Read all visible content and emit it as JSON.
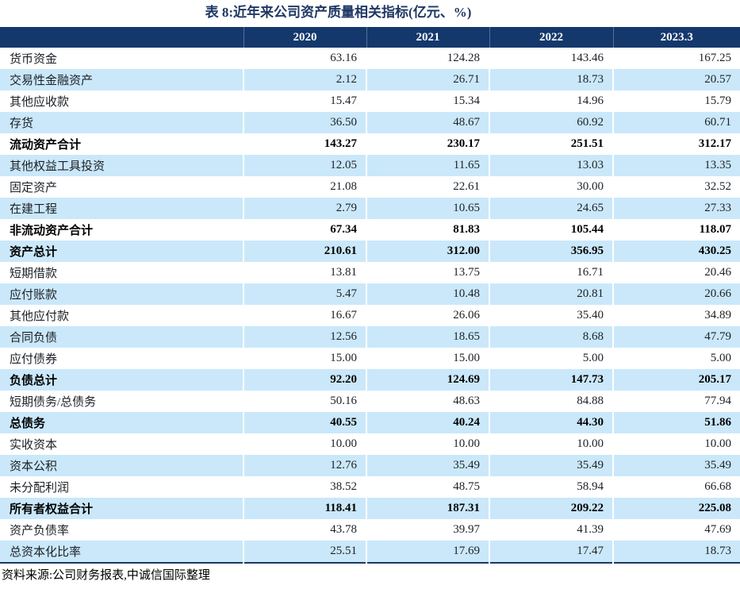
{
  "title": "表 8:近年来公司资产质量相关指标(亿元、%)",
  "table": {
    "columns": [
      "",
      "2020",
      "2021",
      "2022",
      "2023.3"
    ],
    "rows": [
      {
        "label": "货币资金",
        "values": [
          "63.16",
          "124.28",
          "143.46",
          "167.25"
        ],
        "bold": false
      },
      {
        "label": "交易性金融资产",
        "values": [
          "2.12",
          "26.71",
          "18.73",
          "20.57"
        ],
        "bold": false
      },
      {
        "label": "其他应收款",
        "values": [
          "15.47",
          "15.34",
          "14.96",
          "15.79"
        ],
        "bold": false
      },
      {
        "label": "存货",
        "values": [
          "36.50",
          "48.67",
          "60.92",
          "60.71"
        ],
        "bold": false
      },
      {
        "label": "流动资产合计",
        "values": [
          "143.27",
          "230.17",
          "251.51",
          "312.17"
        ],
        "bold": true
      },
      {
        "label": "其他权益工具投资",
        "values": [
          "12.05",
          "11.65",
          "13.03",
          "13.35"
        ],
        "bold": false
      },
      {
        "label": "固定资产",
        "values": [
          "21.08",
          "22.61",
          "30.00",
          "32.52"
        ],
        "bold": false
      },
      {
        "label": "在建工程",
        "values": [
          "2.79",
          "10.65",
          "24.65",
          "27.33"
        ],
        "bold": false
      },
      {
        "label": "非流动资产合计",
        "values": [
          "67.34",
          "81.83",
          "105.44",
          "118.07"
        ],
        "bold": true
      },
      {
        "label": "资产总计",
        "values": [
          "210.61",
          "312.00",
          "356.95",
          "430.25"
        ],
        "bold": true
      },
      {
        "label": "短期借款",
        "values": [
          "13.81",
          "13.75",
          "16.71",
          "20.46"
        ],
        "bold": false
      },
      {
        "label": "应付账款",
        "values": [
          "5.47",
          "10.48",
          "20.81",
          "20.66"
        ],
        "bold": false
      },
      {
        "label": "其他应付款",
        "values": [
          "16.67",
          "26.06",
          "35.40",
          "34.89"
        ],
        "bold": false
      },
      {
        "label": "合同负债",
        "values": [
          "12.56",
          "18.65",
          "8.68",
          "47.79"
        ],
        "bold": false
      },
      {
        "label": "应付债券",
        "values": [
          "15.00",
          "15.00",
          "5.00",
          "5.00"
        ],
        "bold": false
      },
      {
        "label": "负债总计",
        "values": [
          "92.20",
          "124.69",
          "147.73",
          "205.17"
        ],
        "bold": true
      },
      {
        "label": "短期债务/总债务",
        "values": [
          "50.16",
          "48.63",
          "84.88",
          "77.94"
        ],
        "bold": false
      },
      {
        "label": "总债务",
        "values": [
          "40.55",
          "40.24",
          "44.30",
          "51.86"
        ],
        "bold": true
      },
      {
        "label": "实收资本",
        "values": [
          "10.00",
          "10.00",
          "10.00",
          "10.00"
        ],
        "bold": false
      },
      {
        "label": "资本公积",
        "values": [
          "12.76",
          "35.49",
          "35.49",
          "35.49"
        ],
        "bold": false
      },
      {
        "label": "未分配利润",
        "values": [
          "38.52",
          "48.75",
          "58.94",
          "66.68"
        ],
        "bold": false
      },
      {
        "label": "所有者权益合计",
        "values": [
          "118.41",
          "187.31",
          "209.22",
          "225.08"
        ],
        "bold": true
      },
      {
        "label": "资产负债率",
        "values": [
          "43.78",
          "39.97",
          "41.39",
          "47.69"
        ],
        "bold": false
      },
      {
        "label": "总资本化比率",
        "values": [
          "25.51",
          "17.69",
          "17.47",
          "18.73"
        ],
        "bold": false
      }
    ]
  },
  "footer": {
    "source": "资料来源:公司财务报表,中诚信国际整理"
  },
  "colors": {
    "header_bg": "#14386C",
    "stripe_bg": "#CAE8FA",
    "title_color": "#1F3864",
    "text_color": "#1C2026",
    "border_dark": "#1B3A66"
  }
}
